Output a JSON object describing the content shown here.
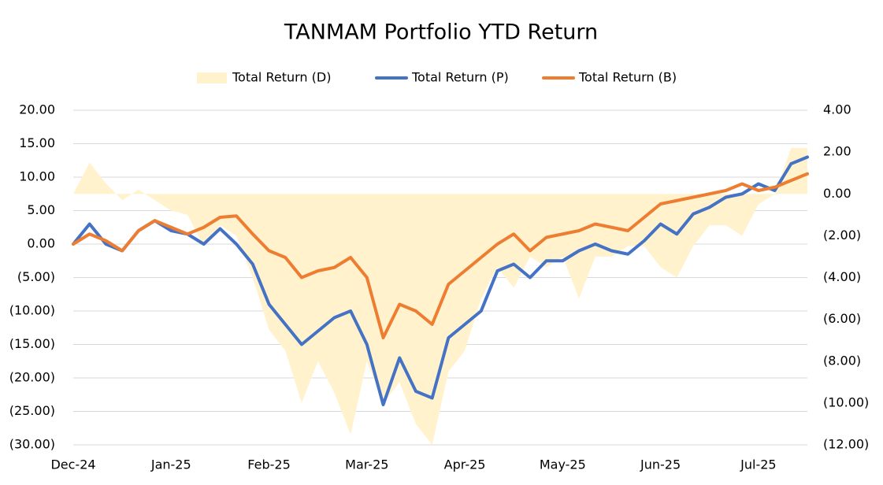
{
  "chart_data": {
    "type": "line",
    "title": "TANMAM Portfolio YTD Return",
    "categories": [
      "Dec-24",
      null,
      null,
      null,
      null,
      null,
      "Jan-25",
      null,
      null,
      null,
      null,
      null,
      "Feb-25",
      null,
      null,
      null,
      null,
      null,
      "Mar-25",
      null,
      null,
      null,
      null,
      null,
      "Apr-25",
      null,
      null,
      null,
      null,
      null,
      "May-25",
      null,
      null,
      null,
      null,
      null,
      "Jun-25",
      null,
      null,
      null,
      null,
      null,
      "Jul-25",
      null,
      null,
      null
    ],
    "series": [
      {
        "name": "Total Return (D)",
        "kind": "area",
        "axis": "y2",
        "color": "#fff2cc",
        "values": [
          0,
          1.5,
          0.5,
          -0.3,
          0.2,
          -0.3,
          -0.8,
          -1,
          -2.5,
          -1.5,
          -2,
          -4,
          -6.5,
          -7.5,
          -10,
          -8,
          -9.5,
          -11.5,
          -8,
          -10,
          -9,
          -11,
          -12,
          -8.5,
          -7.5,
          -5,
          -3.5,
          -4.5,
          -3,
          -3.5,
          -3,
          -5,
          -3,
          -3,
          -2.5,
          -2.5,
          -3.5,
          -4,
          -2.5,
          -1.5,
          -1.5,
          -2,
          -0.5,
          0,
          2.2,
          2.2
        ]
      },
      {
        "name": "Total Return (P)",
        "kind": "line",
        "color": "#4472c4",
        "values": [
          0,
          3,
          0,
          -1,
          2,
          3.5,
          2,
          1.5,
          0,
          2.3,
          0,
          -3,
          -9,
          -12,
          -15,
          -13,
          -11,
          -10,
          -15,
          -24,
          -17,
          -22,
          -23,
          -14,
          -12,
          -10,
          -4,
          -3,
          -5,
          -2.5,
          -2.5,
          -1,
          0,
          -1,
          -1.5,
          0.5,
          3,
          1.5,
          4.5,
          5.5,
          7,
          7.5,
          9,
          8,
          12,
          13
        ]
      },
      {
        "name": "Total Return (B)",
        "kind": "line",
        "color": "#ed7d31",
        "values": [
          0,
          1.5,
          0.5,
          -1,
          2,
          3.5,
          2.5,
          1.5,
          2.5,
          4,
          4.2,
          1.5,
          -1,
          -2,
          -5,
          -4,
          -3.5,
          -2,
          -5,
          -14,
          -9,
          -10,
          -12,
          -6,
          -4,
          -2,
          0,
          1.5,
          -1,
          1,
          1.5,
          2,
          3,
          2.5,
          2,
          4,
          6,
          6.5,
          7,
          7.5,
          8,
          9,
          8,
          8.5,
          9.5,
          10.5
        ]
      }
    ],
    "ylim": [
      -30,
      20
    ],
    "yticks": [
      {
        "value": 20,
        "label": "20.00"
      },
      {
        "value": 15,
        "label": "15.00"
      },
      {
        "value": 10,
        "label": "10.00"
      },
      {
        "value": 5,
        "label": "5.00"
      },
      {
        "value": 0,
        "label": "0.00"
      },
      {
        "value": -5,
        "label": "(5.00)"
      },
      {
        "value": -10,
        "label": "(10.00)"
      },
      {
        "value": -15,
        "label": "(15.00)"
      },
      {
        "value": -20,
        "label": "(20.00)"
      },
      {
        "value": -25,
        "label": "(25.00)"
      },
      {
        "value": -30,
        "label": "(30.00)"
      }
    ],
    "y2lim": [
      -12,
      4
    ],
    "y2ticks": [
      {
        "value": 4,
        "label": "4.00"
      },
      {
        "value": 2,
        "label": "2.00"
      },
      {
        "value": 0,
        "label": "0.00"
      },
      {
        "value": -2,
        "label": "(2.00)"
      },
      {
        "value": -4,
        "label": "(4.00)"
      },
      {
        "value": -6,
        "label": "(6.00)"
      },
      {
        "value": -8,
        "label": "(8.00)"
      },
      {
        "value": -10,
        "label": "(10.00)"
      },
      {
        "value": -12,
        "label": "(12.00)"
      }
    ],
    "negative_tick_color": "#e00000",
    "grid": true,
    "legend": "top"
  }
}
